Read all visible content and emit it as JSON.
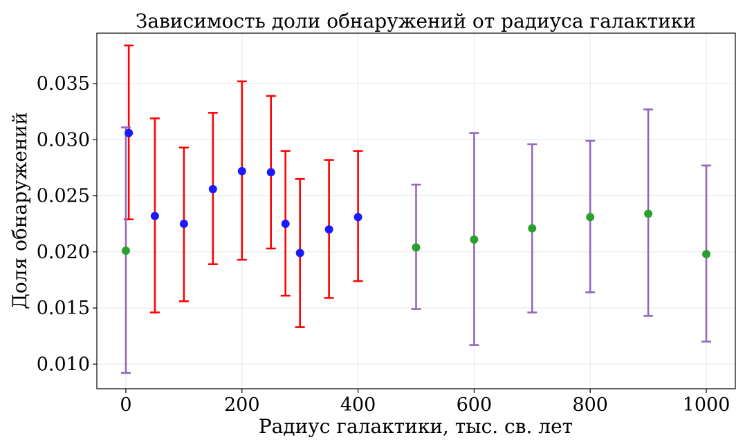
{
  "chart_data": {
    "type": "scatter",
    "title": "Зависимость доли обнаружений от радиуса галактики",
    "xlabel": "Радиус галактики, тыс. св. лет",
    "ylabel": "Доля обнаружений",
    "xlim": [
      -50,
      1050
    ],
    "ylim": [
      0.0078,
      0.0395
    ],
    "xticks": [
      0,
      200,
      400,
      600,
      800,
      1000
    ],
    "xtick_labels": [
      "0",
      "200",
      "400",
      "600",
      "800",
      "1000"
    ],
    "yticks": [
      0.01,
      0.015,
      0.02,
      0.025,
      0.03,
      0.035
    ],
    "ytick_labels": [
      "0.010",
      "0.015",
      "0.020",
      "0.025",
      "0.030",
      "0.035"
    ],
    "grid": true,
    "series": [
      {
        "color": "#1a1aff",
        "error_color": "#ff0000",
        "points": [
          {
            "x": 5,
            "y": 0.0306,
            "low": 0.0229,
            "high": 0.0384
          },
          {
            "x": 50,
            "y": 0.0232,
            "low": 0.0146,
            "high": 0.0319
          },
          {
            "x": 100,
            "y": 0.0225,
            "low": 0.0156,
            "high": 0.0293
          },
          {
            "x": 150,
            "y": 0.0256,
            "low": 0.0189,
            "high": 0.0324
          },
          {
            "x": 200,
            "y": 0.0272,
            "low": 0.0193,
            "high": 0.0352
          },
          {
            "x": 250,
            "y": 0.0271,
            "low": 0.0203,
            "high": 0.0339
          },
          {
            "x": 275,
            "y": 0.0225,
            "low": 0.0161,
            "high": 0.029
          },
          {
            "x": 300,
            "y": 0.0199,
            "low": 0.0133,
            "high": 0.0265
          },
          {
            "x": 350,
            "y": 0.022,
            "low": 0.0159,
            "high": 0.0282
          },
          {
            "x": 400,
            "y": 0.0231,
            "low": 0.0174,
            "high": 0.029
          }
        ]
      },
      {
        "color": "#2ca02c",
        "error_color": "#9467bd",
        "points": [
          {
            "x": 0,
            "y": 0.0201,
            "low": 0.0092,
            "high": 0.0311
          },
          {
            "x": 500,
            "y": 0.0204,
            "low": 0.0149,
            "high": 0.026
          },
          {
            "x": 600,
            "y": 0.0211,
            "low": 0.0117,
            "high": 0.0306
          },
          {
            "x": 700,
            "y": 0.0221,
            "low": 0.0146,
            "high": 0.0296
          },
          {
            "x": 800,
            "y": 0.0231,
            "low": 0.0164,
            "high": 0.0299
          },
          {
            "x": 900,
            "y": 0.0234,
            "low": 0.0143,
            "high": 0.0327
          },
          {
            "x": 1000,
            "y": 0.0198,
            "low": 0.012,
            "high": 0.0277
          }
        ]
      }
    ]
  }
}
